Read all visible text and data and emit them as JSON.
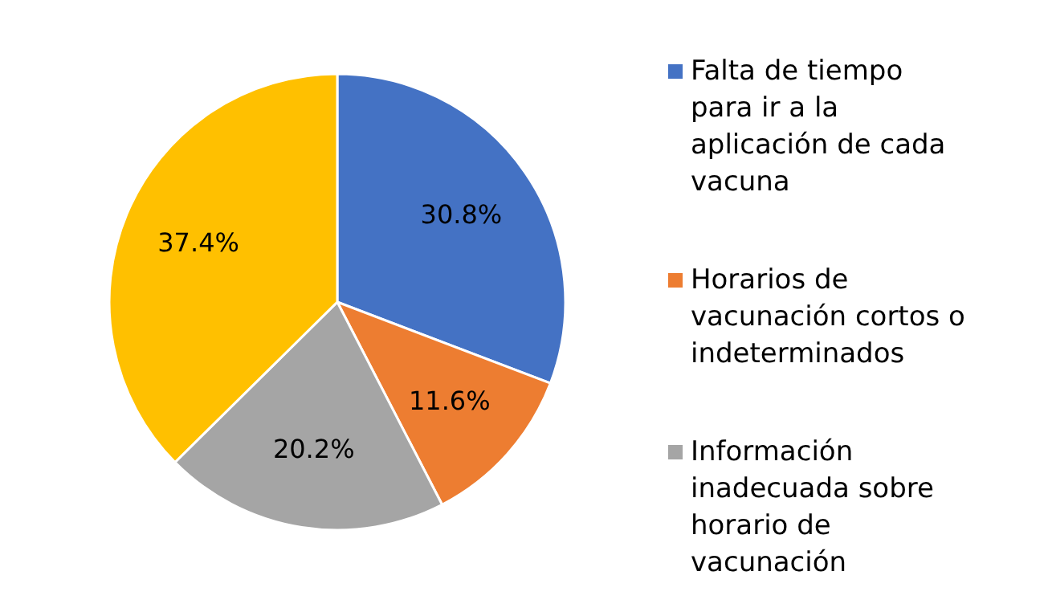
{
  "chart_data": {
    "type": "pie",
    "categories": [
      "Falta de tiempo para ir a la aplicación de cada vacuna",
      "Horarios de vacunación cortos o indeterminados",
      "Información inadecuada sobre horario de vacunación",
      null
    ],
    "values": [
      30.8,
      11.6,
      20.2,
      37.4
    ],
    "colors": [
      "#4472c4",
      "#ed7d31",
      "#a5a5a5",
      "#ffc000"
    ],
    "value_labels": [
      "30.8%",
      "11.6%",
      "20.2%",
      "37.4%"
    ],
    "legend": "right"
  }
}
